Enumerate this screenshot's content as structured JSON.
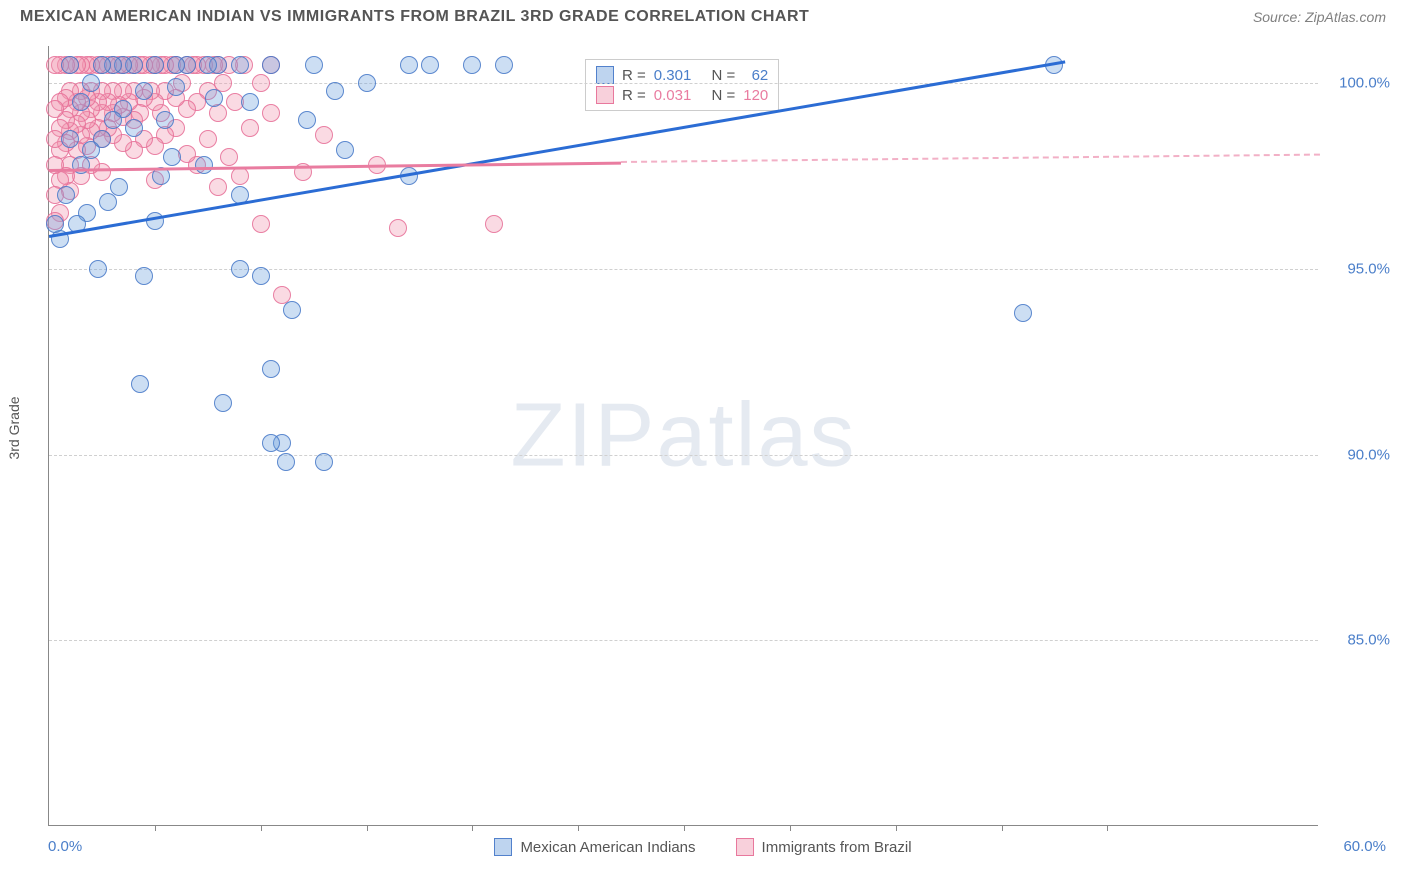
{
  "header": {
    "title": "MEXICAN AMERICAN INDIAN VS IMMIGRANTS FROM BRAZIL 3RD GRADE CORRELATION CHART",
    "source": "Source: ZipAtlas.com"
  },
  "watermark": {
    "zip": "ZIP",
    "atlas": "atlas"
  },
  "chart": {
    "type": "scatter",
    "ylabel": "3rd Grade",
    "xlim": [
      0,
      60
    ],
    "ylim": [
      80,
      101
    ],
    "xtick_label_left": "0.0%",
    "xtick_label_right": "60.0%",
    "xtick_positions": [
      5,
      10,
      15,
      20,
      25,
      30,
      35,
      40,
      45,
      50
    ],
    "yticks": [
      {
        "v": 85,
        "label": "85.0%"
      },
      {
        "v": 90,
        "label": "90.0%"
      },
      {
        "v": 95,
        "label": "95.0%"
      },
      {
        "v": 100,
        "label": "100.0%"
      }
    ],
    "grid_color": "#d0d0d0",
    "background_color": "#ffffff",
    "series": {
      "blue": {
        "name": "Mexican American Indians",
        "color": "#4a7ec9",
        "fill": "rgba(110,160,220,0.35)",
        "R": "0.301",
        "N": "62",
        "trend": {
          "x1": 0,
          "y1": 95.9,
          "x2": 48,
          "y2": 100.6
        },
        "points": [
          [
            47.5,
            100.5
          ],
          [
            46,
            93.8
          ],
          [
            21.5,
            100.5
          ],
          [
            20,
            100.5
          ],
          [
            18,
            100.5
          ],
          [
            17,
            100.5
          ],
          [
            17,
            97.5
          ],
          [
            15,
            100
          ],
          [
            14,
            98.2
          ],
          [
            13.5,
            99.8
          ],
          [
            13,
            89.8
          ],
          [
            12.5,
            100.5
          ],
          [
            12.2,
            99
          ],
          [
            11.5,
            93.9
          ],
          [
            11,
            90.3
          ],
          [
            11.2,
            89.8
          ],
          [
            10.5,
            100.5
          ],
          [
            10.5,
            92.3
          ],
          [
            10.5,
            90.3
          ],
          [
            10,
            94.8
          ],
          [
            9.5,
            99.5
          ],
          [
            9,
            100.5
          ],
          [
            9,
            97
          ],
          [
            9,
            95
          ],
          [
            8.2,
            91.4
          ],
          [
            8,
            100.5
          ],
          [
            7.8,
            99.6
          ],
          [
            7.5,
            100.5
          ],
          [
            7.3,
            97.8
          ],
          [
            6.5,
            100.5
          ],
          [
            6,
            100.5
          ],
          [
            6,
            99.9
          ],
          [
            5.8,
            98
          ],
          [
            5.5,
            99
          ],
          [
            5.3,
            97.5
          ],
          [
            5,
            100.5
          ],
          [
            5,
            96.3
          ],
          [
            4.5,
            99.8
          ],
          [
            4.5,
            94.8
          ],
          [
            4.3,
            91.9
          ],
          [
            4,
            100.5
          ],
          [
            4,
            98.8
          ],
          [
            3.5,
            100.5
          ],
          [
            3.5,
            99.3
          ],
          [
            3.3,
            97.2
          ],
          [
            3,
            100.5
          ],
          [
            3,
            99
          ],
          [
            2.8,
            96.8
          ],
          [
            2.5,
            100.5
          ],
          [
            2.5,
            98.5
          ],
          [
            2.3,
            95
          ],
          [
            2,
            100
          ],
          [
            2,
            98.2
          ],
          [
            1.8,
            96.5
          ],
          [
            1.5,
            99.5
          ],
          [
            1.5,
            97.8
          ],
          [
            1.3,
            96.2
          ],
          [
            1,
            100.5
          ],
          [
            1,
            98.5
          ],
          [
            0.8,
            97
          ],
          [
            0.5,
            95.8
          ],
          [
            0.3,
            96.2
          ]
        ]
      },
      "pink": {
        "name": "Immigants from Brazil",
        "label": "Immigrants from Brazil",
        "color": "#e97ca0",
        "fill": "rgba(240,150,175,0.35)",
        "R": "0.031",
        "N": "120",
        "trend_solid": {
          "x1": 0,
          "y1": 97.7,
          "x2": 27,
          "y2": 97.9
        },
        "trend_dashed": {
          "x1": 27,
          "y1": 97.9,
          "x2": 60,
          "y2": 98.1
        },
        "points": [
          [
            21,
            96.2
          ],
          [
            16.5,
            96.1
          ],
          [
            15.5,
            97.8
          ],
          [
            13,
            98.6
          ],
          [
            12,
            97.6
          ],
          [
            11,
            94.3
          ],
          [
            10.5,
            99.2
          ],
          [
            10.5,
            100.5
          ],
          [
            10,
            96.2
          ],
          [
            10,
            100
          ],
          [
            9.5,
            98.8
          ],
          [
            9.2,
            100.5
          ],
          [
            9,
            97.5
          ],
          [
            8.8,
            99.5
          ],
          [
            8.5,
            100.5
          ],
          [
            8.5,
            98
          ],
          [
            8.2,
            100
          ],
          [
            8,
            100.5
          ],
          [
            8,
            99.2
          ],
          [
            8,
            97.2
          ],
          [
            7.8,
            100.5
          ],
          [
            7.5,
            99.8
          ],
          [
            7.5,
            98.5
          ],
          [
            7.3,
            100.5
          ],
          [
            7,
            100.5
          ],
          [
            7,
            99.5
          ],
          [
            7,
            97.8
          ],
          [
            6.8,
            100.5
          ],
          [
            6.5,
            100.5
          ],
          [
            6.5,
            99.3
          ],
          [
            6.5,
            98.1
          ],
          [
            6.3,
            100
          ],
          [
            6,
            100.5
          ],
          [
            6,
            99.6
          ],
          [
            6,
            98.8
          ],
          [
            5.8,
            100.5
          ],
          [
            5.5,
            100.5
          ],
          [
            5.5,
            99.8
          ],
          [
            5.5,
            98.6
          ],
          [
            5.3,
            100.5
          ],
          [
            5.3,
            99.2
          ],
          [
            5,
            100.5
          ],
          [
            5,
            99.5
          ],
          [
            5,
            98.3
          ],
          [
            5,
            97.4
          ],
          [
            4.8,
            100.5
          ],
          [
            4.8,
            99.8
          ],
          [
            4.5,
            100.5
          ],
          [
            4.5,
            99.6
          ],
          [
            4.5,
            98.5
          ],
          [
            4.3,
            100.5
          ],
          [
            4.3,
            99.2
          ],
          [
            4,
            100.5
          ],
          [
            4,
            99.8
          ],
          [
            4,
            99
          ],
          [
            4,
            98.2
          ],
          [
            3.8,
            100.5
          ],
          [
            3.8,
            99.5
          ],
          [
            3.5,
            100.5
          ],
          [
            3.5,
            99.8
          ],
          [
            3.5,
            99.1
          ],
          [
            3.5,
            98.4
          ],
          [
            3.3,
            100.5
          ],
          [
            3.3,
            99.4
          ],
          [
            3,
            100.5
          ],
          [
            3,
            99.8
          ],
          [
            3,
            99.2
          ],
          [
            3,
            98.6
          ],
          [
            2.8,
            100.5
          ],
          [
            2.8,
            99.5
          ],
          [
            2.8,
            98.8
          ],
          [
            2.5,
            100.5
          ],
          [
            2.5,
            99.8
          ],
          [
            2.5,
            99.2
          ],
          [
            2.5,
            98.5
          ],
          [
            2.5,
            97.6
          ],
          [
            2.3,
            100.5
          ],
          [
            2.3,
            99.5
          ],
          [
            2.3,
            98.8
          ],
          [
            2,
            100.5
          ],
          [
            2,
            99.8
          ],
          [
            2,
            99.3
          ],
          [
            2,
            98.7
          ],
          [
            2,
            97.8
          ],
          [
            1.8,
            100.5
          ],
          [
            1.8,
            99.6
          ],
          [
            1.8,
            99
          ],
          [
            1.8,
            98.3
          ],
          [
            1.5,
            100.5
          ],
          [
            1.5,
            99.8
          ],
          [
            1.5,
            99.2
          ],
          [
            1.5,
            98.6
          ],
          [
            1.5,
            97.5
          ],
          [
            1.3,
            100.5
          ],
          [
            1.3,
            99.5
          ],
          [
            1.3,
            98.9
          ],
          [
            1.3,
            98.2
          ],
          [
            1,
            100.5
          ],
          [
            1,
            99.8
          ],
          [
            1,
            99.3
          ],
          [
            1,
            98.7
          ],
          [
            1,
            97.8
          ],
          [
            1,
            97.1
          ],
          [
            0.8,
            100.5
          ],
          [
            0.8,
            99.6
          ],
          [
            0.8,
            99
          ],
          [
            0.8,
            98.4
          ],
          [
            0.8,
            97.5
          ],
          [
            0.5,
            100.5
          ],
          [
            0.5,
            99.5
          ],
          [
            0.5,
            98.8
          ],
          [
            0.5,
            98.2
          ],
          [
            0.5,
            97.4
          ],
          [
            0.5,
            96.5
          ],
          [
            0.3,
            100.5
          ],
          [
            0.3,
            99.3
          ],
          [
            0.3,
            98.5
          ],
          [
            0.3,
            97.8
          ],
          [
            0.3,
            97
          ],
          [
            0.3,
            96.3
          ]
        ]
      }
    },
    "stats_labels": {
      "R": "R =",
      "N": "N ="
    },
    "legend": [
      {
        "swatch": "blue",
        "label": "Mexican American Indians"
      },
      {
        "swatch": "pink",
        "label": "Immigrants from Brazil"
      }
    ]
  }
}
